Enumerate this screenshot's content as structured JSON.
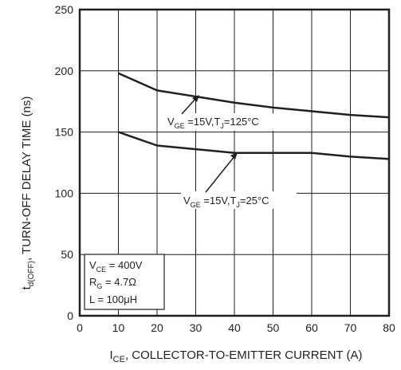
{
  "chart_data": {
    "type": "line",
    "xlabel": {
      "main": "I",
      "sub": "CE",
      "rest": ", COLLECTOR-TO-EMITTER CURRENT (A)"
    },
    "ylabel": {
      "main": "t",
      "sub": "d(OFF)",
      "rest": ", TURN-OFF DELAY TIME (ns)"
    },
    "xlim": [
      0,
      80
    ],
    "ylim": [
      0,
      250
    ],
    "xticks": [
      0,
      10,
      20,
      30,
      40,
      50,
      60,
      70,
      80
    ],
    "yticks": [
      0,
      50,
      100,
      150,
      200,
      250
    ],
    "grid": true,
    "series": [
      {
        "label": {
          "a": "V",
          "a_sub": "GE",
          "b": " =15V,T",
          "b_sub": "J",
          "c": "=125°C"
        },
        "x": [
          10,
          20,
          30,
          40,
          50,
          60,
          70,
          80
        ],
        "y": [
          198,
          184,
          179,
          174,
          170,
          167,
          164,
          162
        ]
      },
      {
        "label": {
          "a": "V",
          "a_sub": "GE",
          "b": " =15V,T",
          "b_sub": "J",
          "c": "=25°C"
        },
        "x": [
          10,
          20,
          30,
          40,
          50,
          60,
          70,
          80
        ],
        "y": [
          150,
          139,
          136,
          133,
          133,
          133,
          130,
          128
        ]
      }
    ],
    "conditions": [
      {
        "a": "V",
        "sub": "CE",
        "b": " = 400V"
      },
      {
        "a": "R",
        "sub": "G",
        "b": " = 4.7Ω"
      },
      {
        "a": "L = 100μH",
        "sub": "",
        "b": ""
      }
    ]
  }
}
